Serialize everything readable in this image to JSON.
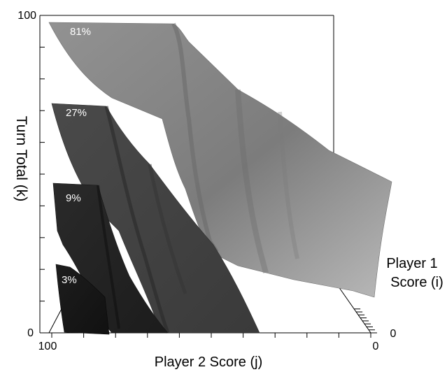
{
  "chart_data": {
    "type": "area",
    "title": "",
    "zlabel": "Turn Total (k)",
    "xlabel": "Player 2 Score (j)",
    "ylabel": "Player 1 Score (i)",
    "ylabel_lines": [
      "Player 1",
      "Score (i)"
    ],
    "z_ticks": {
      "min": "0",
      "max": "100"
    },
    "x_ticks": {
      "left": "100",
      "right": "0"
    },
    "y_ticks": {
      "near": "0"
    },
    "series": [
      {
        "name": "81%",
        "color": "#8c8c8c",
        "shade": "#777777"
      },
      {
        "name": "27%",
        "color": "#444444",
        "shade": "#2f2f2f"
      },
      {
        "name": "9%",
        "color": "#252525",
        "shade": "#141414"
      },
      {
        "name": "3%",
        "color": "#181818",
        "shade": "#0b0b0b"
      }
    ]
  }
}
